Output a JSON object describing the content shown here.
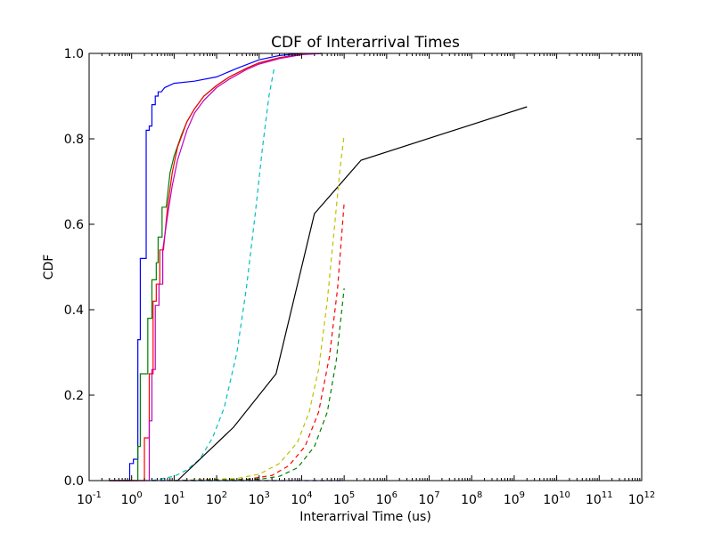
{
  "chart_data": {
    "type": "line",
    "title": "CDF of Interarrival Times",
    "xlabel": "Interarrival Time (us)",
    "ylabel": "CDF",
    "xscale": "log",
    "xlim": [
      0.1,
      1000000000000
    ],
    "ylim": [
      0.0,
      1.0
    ],
    "grid": false,
    "x_tick_labels": [
      {
        "base": "10",
        "exp": "-1"
      },
      {
        "base": "10",
        "exp": "0"
      },
      {
        "base": "10",
        "exp": "1"
      },
      {
        "base": "10",
        "exp": "2"
      },
      {
        "base": "10",
        "exp": "3"
      },
      {
        "base": "10",
        "exp": "4"
      },
      {
        "base": "10",
        "exp": "5"
      },
      {
        "base": "10",
        "exp": "6"
      },
      {
        "base": "10",
        "exp": "7"
      },
      {
        "base": "10",
        "exp": "8"
      },
      {
        "base": "10",
        "exp": "9"
      },
      {
        "base": "10",
        "exp": "10"
      },
      {
        "base": "10",
        "exp": "11"
      },
      {
        "base": "10",
        "exp": "12"
      }
    ],
    "y_tick_labels": [
      "0.0",
      "0.2",
      "0.4",
      "0.6",
      "0.8",
      "1.0"
    ],
    "series": [
      {
        "color": "#0000ff",
        "style": "solid",
        "step": true,
        "points": [
          [
            0.3,
            0.0
          ],
          [
            0.9,
            0.0
          ],
          [
            0.9,
            0.04
          ],
          [
            1.1,
            0.04
          ],
          [
            1.1,
            0.05
          ],
          [
            1.4,
            0.05
          ],
          [
            1.4,
            0.33
          ],
          [
            1.6,
            0.33
          ],
          [
            1.6,
            0.52
          ],
          [
            2.2,
            0.52
          ],
          [
            2.2,
            0.82
          ],
          [
            2.6,
            0.82
          ],
          [
            2.6,
            0.83
          ],
          [
            3.0,
            0.83
          ],
          [
            3.0,
            0.88
          ],
          [
            3.6,
            0.88
          ],
          [
            3.6,
            0.9
          ],
          [
            4.2,
            0.9
          ],
          [
            4.2,
            0.91
          ],
          [
            5.0,
            0.91
          ],
          [
            6,
            0.92
          ],
          [
            10,
            0.93
          ],
          [
            30,
            0.935
          ],
          [
            100,
            0.945
          ],
          [
            300,
            0.965
          ],
          [
            1000,
            0.985
          ],
          [
            3000,
            0.995
          ],
          [
            10000,
            1.0
          ]
        ]
      },
      {
        "color": "#008000",
        "style": "solid",
        "step": true,
        "points": [
          [
            0.3,
            0.0
          ],
          [
            1.4,
            0.0
          ],
          [
            1.4,
            0.08
          ],
          [
            1.6,
            0.08
          ],
          [
            1.6,
            0.25
          ],
          [
            2.4,
            0.25
          ],
          [
            2.4,
            0.38
          ],
          [
            3.0,
            0.38
          ],
          [
            3.0,
            0.47
          ],
          [
            3.8,
            0.47
          ],
          [
            3.8,
            0.51
          ],
          [
            4.2,
            0.51
          ],
          [
            4.2,
            0.57
          ],
          [
            5.2,
            0.57
          ],
          [
            5.2,
            0.64
          ],
          [
            6.5,
            0.64
          ],
          [
            8,
            0.72
          ],
          [
            10,
            0.76
          ],
          [
            15,
            0.81
          ],
          [
            20,
            0.84
          ],
          [
            30,
            0.87
          ],
          [
            50,
            0.9
          ],
          [
            100,
            0.925
          ],
          [
            200,
            0.945
          ],
          [
            500,
            0.965
          ],
          [
            1000,
            0.978
          ],
          [
            3000,
            0.99
          ],
          [
            10000,
            0.998
          ],
          [
            30000,
            1.0
          ]
        ]
      },
      {
        "color": "#ff0000",
        "style": "solid",
        "step": true,
        "points": [
          [
            0.3,
            0.0
          ],
          [
            2.0,
            0.0
          ],
          [
            2.0,
            0.1
          ],
          [
            2.6,
            0.1
          ],
          [
            2.6,
            0.25
          ],
          [
            3.2,
            0.25
          ],
          [
            3.2,
            0.42
          ],
          [
            3.8,
            0.42
          ],
          [
            3.8,
            0.46
          ],
          [
            4.6,
            0.46
          ],
          [
            4.6,
            0.54
          ],
          [
            5.6,
            0.54
          ],
          [
            7,
            0.64
          ],
          [
            9,
            0.72
          ],
          [
            12,
            0.78
          ],
          [
            20,
            0.84
          ],
          [
            30,
            0.87
          ],
          [
            50,
            0.9
          ],
          [
            100,
            0.925
          ],
          [
            200,
            0.945
          ],
          [
            500,
            0.965
          ],
          [
            1000,
            0.978
          ],
          [
            3000,
            0.99
          ],
          [
            10000,
            0.998
          ],
          [
            30000,
            1.0
          ]
        ]
      },
      {
        "color": "#bf00bf",
        "style": "solid",
        "step": true,
        "points": [
          [
            0.3,
            0.0
          ],
          [
            2.6,
            0.0
          ],
          [
            2.6,
            0.14
          ],
          [
            3.0,
            0.14
          ],
          [
            3.0,
            0.26
          ],
          [
            3.6,
            0.26
          ],
          [
            3.6,
            0.41
          ],
          [
            4.4,
            0.41
          ],
          [
            4.4,
            0.46
          ],
          [
            5.4,
            0.46
          ],
          [
            5.4,
            0.54
          ],
          [
            7,
            0.62
          ],
          [
            9,
            0.69
          ],
          [
            12,
            0.75
          ],
          [
            20,
            0.82
          ],
          [
            30,
            0.86
          ],
          [
            50,
            0.89
          ],
          [
            100,
            0.92
          ],
          [
            200,
            0.94
          ],
          [
            500,
            0.962
          ],
          [
            1000,
            0.975
          ],
          [
            3000,
            0.988
          ],
          [
            10000,
            0.997
          ],
          [
            30000,
            1.0
          ]
        ]
      },
      {
        "color": "#00bfbf",
        "style": "dashed",
        "step": false,
        "points": [
          [
            3,
            0.0
          ],
          [
            10,
            0.01
          ],
          [
            20,
            0.025
          ],
          [
            40,
            0.05
          ],
          [
            80,
            0.1
          ],
          [
            150,
            0.17
          ],
          [
            300,
            0.3
          ],
          [
            500,
            0.45
          ],
          [
            800,
            0.62
          ],
          [
            1200,
            0.78
          ],
          [
            1700,
            0.9
          ],
          [
            2300,
            0.97
          ]
        ]
      },
      {
        "color": "#000000",
        "style": "solid",
        "step": false,
        "points": [
          [
            12,
            0.0
          ],
          [
            250,
            0.125
          ],
          [
            2500,
            0.25
          ],
          [
            5000,
            0.375
          ],
          [
            10000,
            0.5
          ],
          [
            20000,
            0.625
          ],
          [
            250000,
            0.75
          ],
          [
            2000000000,
            0.875
          ]
        ]
      },
      {
        "color": "#bfbf00",
        "style": "dashed",
        "step": false,
        "points": [
          [
            10,
            0.0
          ],
          [
            300,
            0.005
          ],
          [
            1000,
            0.015
          ],
          [
            3000,
            0.04
          ],
          [
            8000,
            0.09
          ],
          [
            15000,
            0.16
          ],
          [
            25000,
            0.26
          ],
          [
            40000,
            0.42
          ],
          [
            60000,
            0.6
          ],
          [
            80000,
            0.73
          ],
          [
            100000,
            0.81
          ]
        ]
      },
      {
        "color": "#ff0000",
        "style": "dashed",
        "step": false,
        "points": [
          [
            10,
            0.0
          ],
          [
            500,
            0.003
          ],
          [
            2000,
            0.012
          ],
          [
            5000,
            0.035
          ],
          [
            12000,
            0.08
          ],
          [
            25000,
            0.16
          ],
          [
            45000,
            0.29
          ],
          [
            70000,
            0.45
          ],
          [
            100000,
            0.65
          ]
        ]
      },
      {
        "color": "#008000",
        "style": "dashed",
        "step": false,
        "points": [
          [
            10,
            0.0
          ],
          [
            1000,
            0.003
          ],
          [
            3000,
            0.01
          ],
          [
            8000,
            0.03
          ],
          [
            20000,
            0.08
          ],
          [
            40000,
            0.16
          ],
          [
            65000,
            0.28
          ],
          [
            100000,
            0.45
          ]
        ]
      },
      {
        "color": "#0000ff",
        "style": "dashed",
        "step": false,
        "points": [
          [
            3,
            0.0
          ],
          [
            100000,
            0.0
          ]
        ]
      }
    ]
  }
}
